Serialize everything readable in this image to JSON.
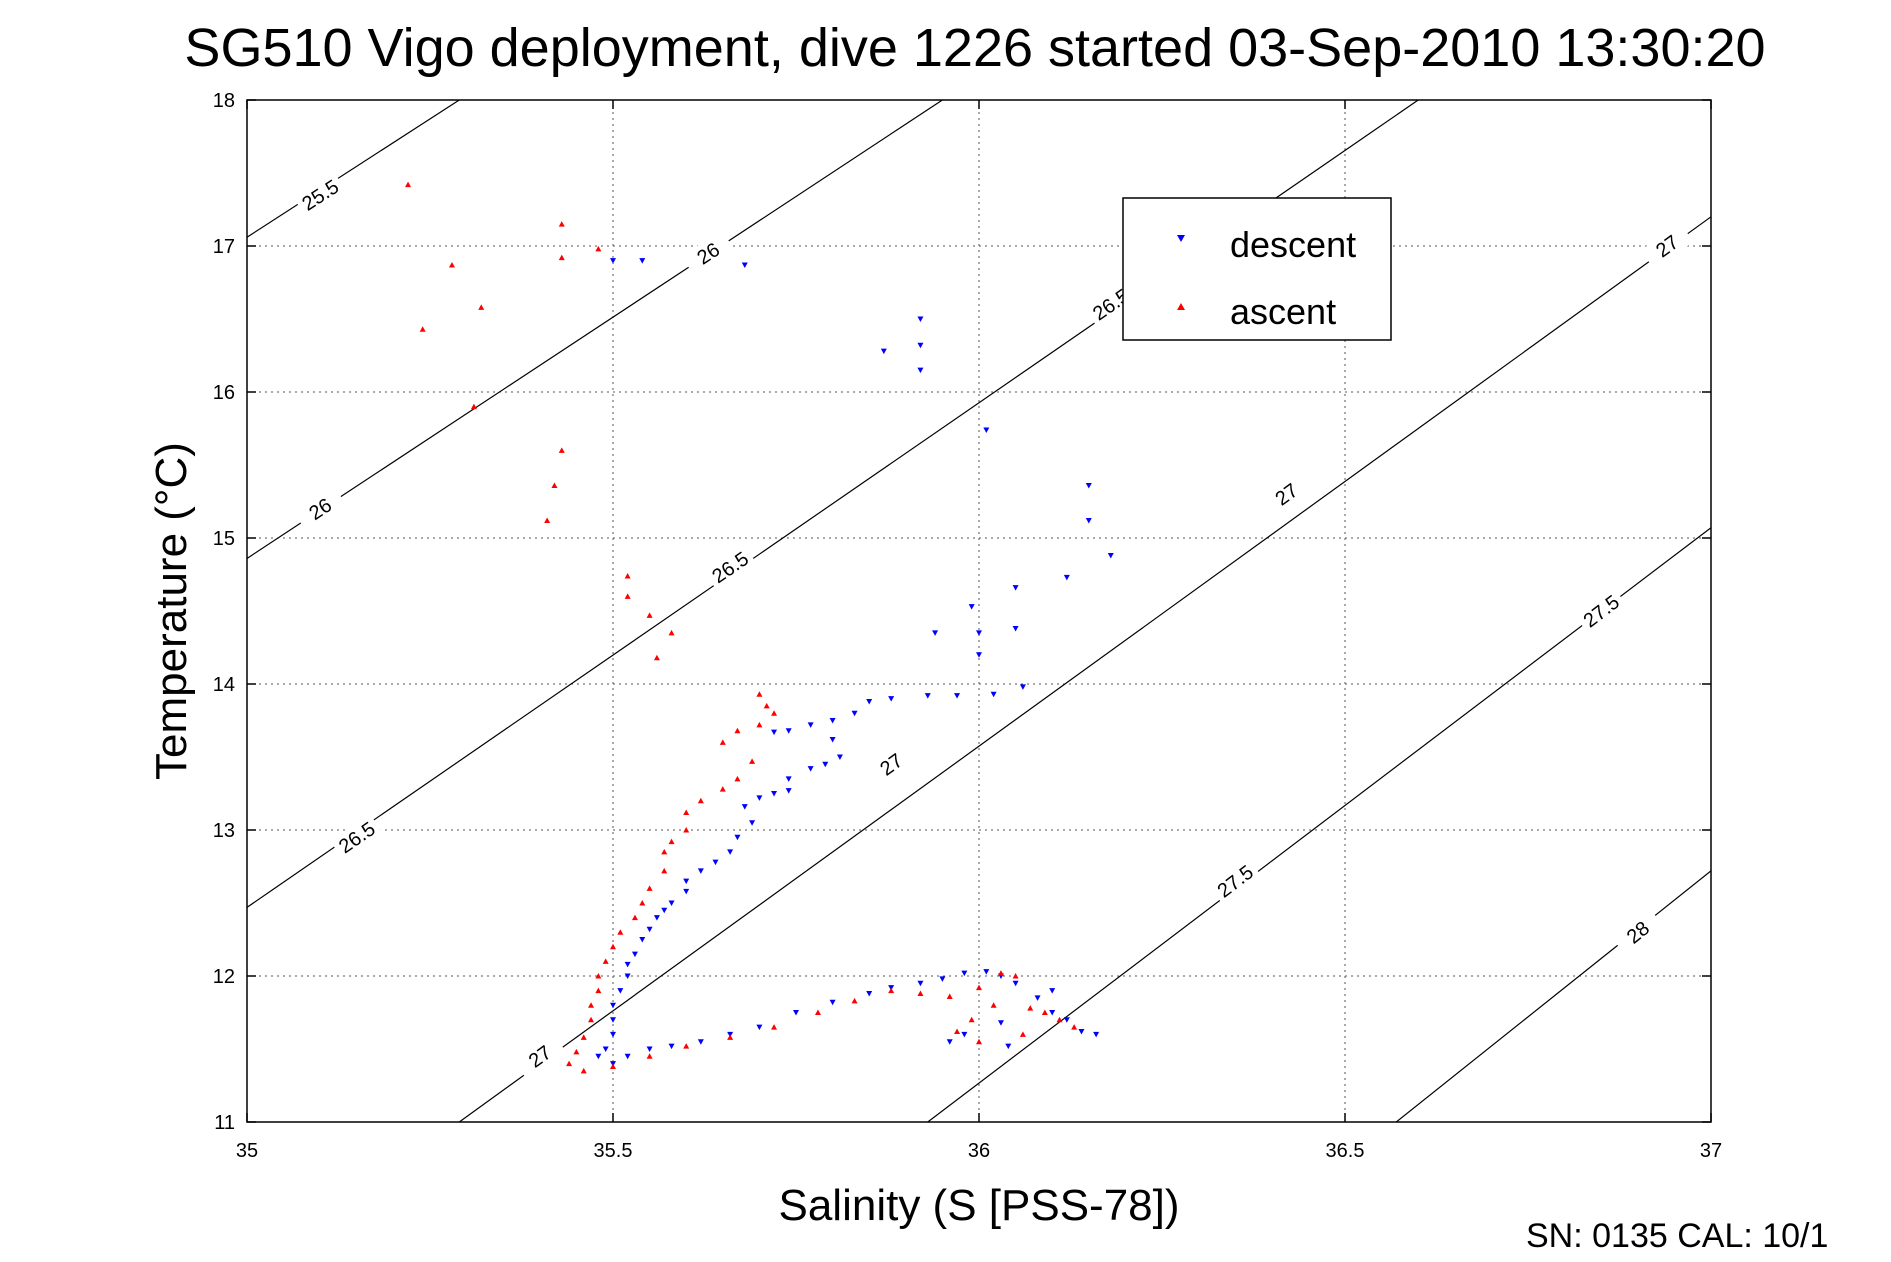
{
  "chart_data": {
    "type": "scatter",
    "title": "SG510 Vigo deployment, dive 1226 started 03-Sep-2010 13:30:20",
    "xlabel": "Salinity (S [PSS-78])",
    "ylabel": "Temperature (°C)",
    "xlim": [
      35,
      37
    ],
    "ylim": [
      11,
      18
    ],
    "x_ticks": [
      35,
      35.5,
      36,
      36.5,
      37
    ],
    "x_tick_labels": [
      "35",
      "35.5",
      "36",
      "36.5",
      "37"
    ],
    "y_ticks": [
      11,
      12,
      13,
      14,
      15,
      16,
      17,
      18
    ],
    "y_tick_labels": [
      "11",
      "12",
      "13",
      "14",
      "15",
      "16",
      "17",
      "18"
    ],
    "grid": true,
    "legend": {
      "position": "upper-center-right",
      "entries": [
        {
          "name": "descent",
          "marker": "triangle-down",
          "color": "#0000ff"
        },
        {
          "name": "ascent",
          "marker": "triangle-up",
          "color": "#ff0000"
        }
      ]
    },
    "density_contours": [
      {
        "label": "25.5",
        "lines": [
          [
            35.0,
            17.06,
            35.29,
            18.0
          ]
        ],
        "labels_at": [
          [
            35.1,
            17.35
          ]
        ]
      },
      {
        "label": "26",
        "lines": [
          [
            35.0,
            14.86,
            35.95,
            18.0
          ]
        ],
        "labels_at": [
          [
            35.1,
            15.2
          ],
          [
            35.63,
            16.95
          ]
        ]
      },
      {
        "label": "26.5",
        "lines": [
          [
            35.0,
            12.47,
            36.6,
            18.0
          ]
        ],
        "labels_at": [
          [
            35.15,
            12.95
          ],
          [
            35.66,
            14.8
          ],
          [
            36.18,
            16.6
          ]
        ]
      },
      {
        "label": "27",
        "lines": [
          [
            35.29,
            11.0,
            37.0,
            17.2
          ]
        ],
        "labels_at": [
          [
            35.4,
            11.45
          ],
          [
            35.88,
            13.45
          ],
          [
            36.42,
            15.3
          ],
          [
            36.94,
            17.0
          ]
        ]
      },
      {
        "label": "27.5",
        "lines": [
          [
            35.93,
            11.0,
            37.0,
            15.07
          ]
        ],
        "labels_at": [
          [
            36.35,
            12.65
          ],
          [
            36.85,
            14.5
          ]
        ]
      },
      {
        "label": "28",
        "lines": [
          [
            36.57,
            11.0,
            37.0,
            12.72
          ]
        ],
        "labels_at": [
          [
            36.9,
            12.3
          ]
        ]
      }
    ],
    "series": [
      {
        "name": "descent",
        "color": "#0000ff",
        "marker": "triangle-down",
        "points": [
          [
            35.5,
            16.9
          ],
          [
            35.54,
            16.9
          ],
          [
            35.68,
            16.87
          ],
          [
            35.92,
            16.5
          ],
          [
            35.87,
            16.28
          ],
          [
            35.92,
            16.32
          ],
          [
            35.92,
            16.15
          ],
          [
            36.01,
            15.74
          ],
          [
            36.15,
            15.36
          ],
          [
            36.15,
            15.12
          ],
          [
            36.18,
            14.88
          ],
          [
            36.12,
            14.73
          ],
          [
            36.05,
            14.66
          ],
          [
            35.99,
            14.53
          ],
          [
            35.94,
            14.35
          ],
          [
            36.0,
            14.35
          ],
          [
            36.05,
            14.38
          ],
          [
            36.0,
            14.2
          ],
          [
            36.06,
            13.98
          ],
          [
            36.02,
            13.93
          ],
          [
            35.72,
            13.67
          ],
          [
            35.74,
            13.68
          ],
          [
            35.77,
            13.72
          ],
          [
            35.8,
            13.75
          ],
          [
            35.83,
            13.8
          ],
          [
            35.85,
            13.88
          ],
          [
            35.88,
            13.9
          ],
          [
            35.93,
            13.92
          ],
          [
            35.97,
            13.92
          ],
          [
            35.8,
            13.62
          ],
          [
            35.81,
            13.5
          ],
          [
            35.79,
            13.45
          ],
          [
            35.77,
            13.42
          ],
          [
            35.74,
            13.35
          ],
          [
            35.74,
            13.27
          ],
          [
            35.72,
            13.25
          ],
          [
            35.7,
            13.22
          ],
          [
            35.68,
            13.16
          ],
          [
            35.69,
            13.05
          ],
          [
            35.67,
            12.95
          ],
          [
            35.66,
            12.85
          ],
          [
            35.64,
            12.78
          ],
          [
            35.62,
            12.72
          ],
          [
            35.6,
            12.65
          ],
          [
            35.6,
            12.58
          ],
          [
            35.58,
            12.5
          ],
          [
            35.57,
            12.45
          ],
          [
            35.56,
            12.4
          ],
          [
            35.55,
            12.32
          ],
          [
            35.54,
            12.25
          ],
          [
            35.53,
            12.15
          ],
          [
            35.52,
            12.08
          ],
          [
            35.52,
            12.0
          ],
          [
            35.51,
            11.9
          ],
          [
            35.5,
            11.8
          ],
          [
            35.5,
            11.7
          ],
          [
            35.5,
            11.6
          ],
          [
            35.49,
            11.5
          ],
          [
            35.48,
            11.45
          ],
          [
            35.5,
            11.4
          ],
          [
            35.52,
            11.45
          ],
          [
            35.55,
            11.5
          ],
          [
            35.58,
            11.52
          ],
          [
            35.62,
            11.55
          ],
          [
            35.66,
            11.6
          ],
          [
            35.7,
            11.65
          ],
          [
            35.75,
            11.75
          ],
          [
            35.8,
            11.82
          ],
          [
            35.85,
            11.88
          ],
          [
            35.88,
            11.92
          ],
          [
            35.92,
            11.95
          ],
          [
            35.95,
            11.98
          ],
          [
            35.98,
            12.02
          ],
          [
            36.01,
            12.03
          ],
          [
            36.03,
            12.0
          ],
          [
            36.05,
            11.95
          ],
          [
            36.08,
            11.85
          ],
          [
            36.1,
            11.75
          ],
          [
            36.12,
            11.7
          ],
          [
            36.14,
            11.62
          ],
          [
            36.16,
            11.6
          ],
          [
            36.1,
            11.9
          ],
          [
            36.03,
            11.68
          ],
          [
            35.98,
            11.6
          ],
          [
            35.96,
            11.55
          ],
          [
            36.04,
            11.52
          ]
        ]
      },
      {
        "name": "ascent",
        "color": "#ff0000",
        "marker": "triangle-up",
        "points": [
          [
            35.22,
            17.42
          ],
          [
            35.43,
            17.15
          ],
          [
            35.48,
            16.98
          ],
          [
            35.43,
            16.92
          ],
          [
            35.28,
            16.87
          ],
          [
            35.32,
            16.58
          ],
          [
            35.24,
            16.43
          ],
          [
            35.31,
            15.9
          ],
          [
            35.43,
            15.6
          ],
          [
            35.42,
            15.36
          ],
          [
            35.41,
            15.12
          ],
          [
            35.52,
            14.74
          ],
          [
            35.52,
            14.6
          ],
          [
            35.55,
            14.47
          ],
          [
            35.58,
            14.35
          ],
          [
            35.56,
            14.18
          ],
          [
            35.7,
            13.93
          ],
          [
            35.71,
            13.85
          ],
          [
            35.72,
            13.8
          ],
          [
            35.7,
            13.72
          ],
          [
            35.67,
            13.68
          ],
          [
            35.65,
            13.6
          ],
          [
            35.69,
            13.47
          ],
          [
            35.67,
            13.35
          ],
          [
            35.65,
            13.28
          ],
          [
            35.62,
            13.2
          ],
          [
            35.6,
            13.12
          ],
          [
            35.6,
            13.0
          ],
          [
            35.58,
            12.92
          ],
          [
            35.57,
            12.85
          ],
          [
            35.57,
            12.72
          ],
          [
            35.55,
            12.6
          ],
          [
            35.54,
            12.5
          ],
          [
            35.53,
            12.4
          ],
          [
            35.51,
            12.3
          ],
          [
            35.5,
            12.2
          ],
          [
            35.49,
            12.1
          ],
          [
            35.48,
            12.0
          ],
          [
            35.48,
            11.9
          ],
          [
            35.47,
            11.8
          ],
          [
            35.47,
            11.7
          ],
          [
            35.46,
            11.58
          ],
          [
            35.45,
            11.48
          ],
          [
            35.44,
            11.4
          ],
          [
            35.46,
            11.35
          ],
          [
            35.5,
            11.38
          ],
          [
            35.55,
            11.45
          ],
          [
            35.6,
            11.52
          ],
          [
            35.66,
            11.58
          ],
          [
            35.72,
            11.65
          ],
          [
            35.78,
            11.75
          ],
          [
            35.83,
            11.83
          ],
          [
            35.88,
            11.9
          ],
          [
            35.92,
            11.88
          ],
          [
            35.96,
            11.86
          ],
          [
            36.0,
            11.92
          ],
          [
            36.03,
            12.02
          ],
          [
            36.05,
            12.0
          ],
          [
            36.02,
            11.8
          ],
          [
            35.99,
            11.7
          ],
          [
            35.97,
            11.62
          ],
          [
            36.0,
            11.55
          ],
          [
            36.07,
            11.78
          ],
          [
            36.09,
            11.75
          ],
          [
            36.11,
            11.7
          ],
          [
            36.13,
            11.65
          ],
          [
            36.06,
            11.6
          ]
        ]
      }
    ],
    "footer": "SN: 0135  CAL: 10/1"
  }
}
